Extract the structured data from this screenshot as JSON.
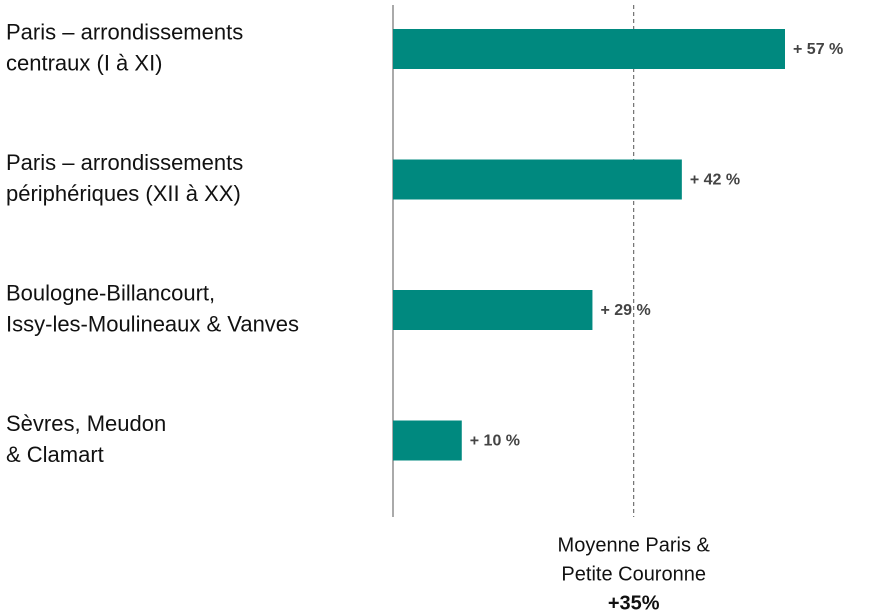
{
  "chart_data": {
    "type": "hbar",
    "categories": [
      [
        "Paris – arrondissements",
        "centraux (I à XI)"
      ],
      [
        "Paris – arrondissements",
        "périphériques  (XII à XX)"
      ],
      [
        "Boulogne-Billancourt,",
        "Issy-les-Moulineaux  & Vanves"
      ],
      [
        "Sèvres, Meudon",
        "& Clamart"
      ]
    ],
    "values": [
      57,
      42,
      29,
      10
    ],
    "value_labels": [
      "+ 57 %",
      "+ 42 %",
      "+ 29 %",
      "+ 10 %"
    ],
    "color": "#00897f",
    "reference": {
      "value": 35,
      "label": [
        "Moyenne Paris &",
        "Petite Couronne"
      ],
      "value_label": "+35%"
    }
  }
}
